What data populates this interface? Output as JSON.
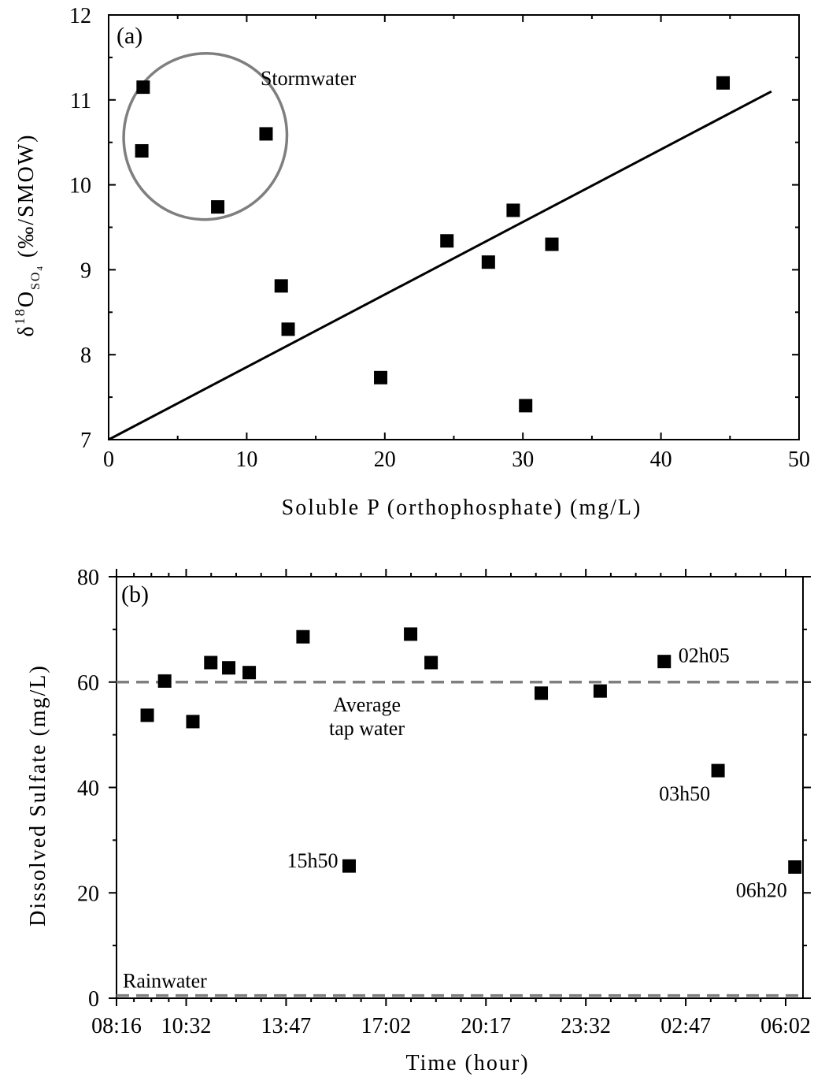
{
  "chart_data": [
    {
      "type": "scatter",
      "panel_label": "(a)",
      "xlabel": "Soluble P (orthophosphate) (mg/L)",
      "ylabel": {
        "delta": "δ",
        "sup": "18",
        "main": "O",
        "sub": "SO",
        "sub2": "4",
        "unit": " (‰/SMOW)"
      },
      "xlim": [
        0,
        50
      ],
      "ylim": [
        7,
        12
      ],
      "xticks": [
        0,
        10,
        20,
        30,
        40,
        50
      ],
      "yticks": [
        7,
        8,
        9,
        10,
        11,
        12
      ],
      "grid": false,
      "points": [
        {
          "x": 2.5,
          "y": 11.15
        },
        {
          "x": 2.4,
          "y": 10.4
        },
        {
          "x": 11.4,
          "y": 10.6
        },
        {
          "x": 7.9,
          "y": 9.74
        },
        {
          "x": 12.5,
          "y": 8.81
        },
        {
          "x": 13.0,
          "y": 8.3
        },
        {
          "x": 19.7,
          "y": 7.73
        },
        {
          "x": 24.5,
          "y": 9.34
        },
        {
          "x": 27.5,
          "y": 9.09
        },
        {
          "x": 29.3,
          "y": 9.7
        },
        {
          "x": 30.2,
          "y": 7.4
        },
        {
          "x": 32.1,
          "y": 9.3
        },
        {
          "x": 44.5,
          "y": 11.2
        }
      ],
      "trendline": {
        "x": [
          0,
          48
        ],
        "y": [
          7.0,
          11.1
        ]
      },
      "ellipse": {
        "cx": 7.0,
        "cy": 10.57,
        "rx": 5.9,
        "ry": 0.98,
        "rotation_deg": 18,
        "color": "#7f7f7f",
        "label": "Stormwater",
        "label_x": 11,
        "label_y": 11.25
      },
      "marker_color": "#000000"
    },
    {
      "type": "scatter",
      "panel_label": "(b)",
      "xlabel": "Time (hour)",
      "ylabel": "Dissolved Sulfate (mg/L)",
      "xlim": [
        "08:16",
        "06:02"
      ],
      "ylim": [
        0,
        80
      ],
      "xticks": [
        "08:16",
        "10:32",
        "13:47",
        "17:02",
        "20:17",
        "23:32",
        "02:47",
        "06:02"
      ],
      "yticks": [
        0,
        20,
        40,
        60,
        80
      ],
      "grid": false,
      "points": [
        {
          "t": "09:16",
          "y": 53.7
        },
        {
          "t": "09:50",
          "y": 60.2
        },
        {
          "t": "10:45",
          "y": 52.5
        },
        {
          "t": "11:20",
          "y": 63.7
        },
        {
          "t": "11:55",
          "y": 62.7
        },
        {
          "t": "12:35",
          "y": 61.8
        },
        {
          "t": "14:20",
          "y": 68.6
        },
        {
          "t": "15:50",
          "y": 25.1
        },
        {
          "t": "17:50",
          "y": 69.1
        },
        {
          "t": "18:30",
          "y": 63.7
        },
        {
          "t": "22:05",
          "y": 57.9
        },
        {
          "t": "24:00",
          "y": 58.3
        },
        {
          "t": "02:05",
          "y": 63.9
        },
        {
          "t": "03:50",
          "y": 43.2
        },
        {
          "t": "06:20",
          "y": 24.9
        }
      ],
      "reference_lines": [
        {
          "y": 60,
          "label_lines": [
            "Average",
            "tap water"
          ],
          "color": "#7f7f7f"
        },
        {
          "y": 0.5,
          "label_lines": [
            "Rainwater"
          ],
          "color": "#7f7f7f"
        }
      ],
      "annotations": [
        {
          "text": "02h05",
          "t": "02:05",
          "y": 63.9,
          "anchor": "right"
        },
        {
          "text": "03h50",
          "t": "03:50",
          "y": 43.2,
          "anchor": "below-left"
        },
        {
          "text": "15h50",
          "t": "15:50",
          "y": 25.1,
          "anchor": "left"
        },
        {
          "text": "06h20",
          "t": "06:20",
          "y": 24.9,
          "anchor": "below-left"
        }
      ],
      "marker_color": "#000000"
    }
  ]
}
